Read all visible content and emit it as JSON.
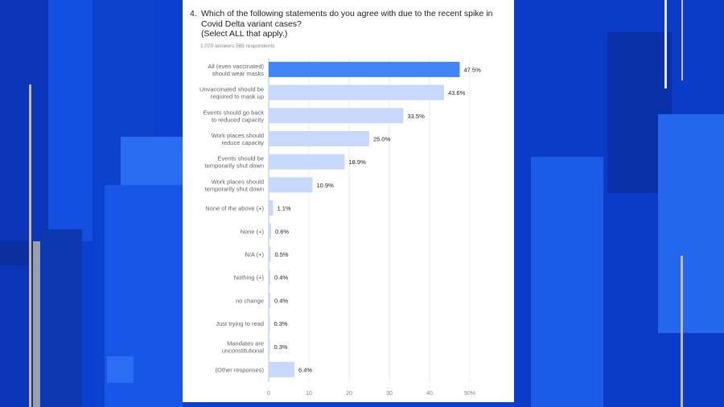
{
  "question": {
    "number": "4.",
    "text": "Which of the following statements do you agree with due to the recent spike in Covid Delta variant cases?",
    "instruction": "(Select ALL that apply.)"
  },
  "stats": "1,070 answers 565 respondents",
  "colors": {
    "highlight": "#4285f4",
    "bar": "#c6d9fb",
    "background": "#0a3fd0"
  },
  "chart_data": {
    "type": "bar",
    "orientation": "horizontal",
    "categories": [
      [
        "All (even vaccinated)",
        "should wear masks"
      ],
      [
        "Unvaccinated should be",
        "required to mask up"
      ],
      [
        "Events should go back",
        "to reduced capacity"
      ],
      [
        "Work places should",
        "reduce capacity"
      ],
      [
        "Events should be",
        "temporarily shut down"
      ],
      [
        "Work places should",
        "temporarily shut down"
      ],
      [
        "None of the above (+)"
      ],
      [
        "None (+)"
      ],
      [
        "N/A (+)"
      ],
      [
        "Nothing (+)"
      ],
      [
        "no change"
      ],
      [
        "Just trying to read"
      ],
      [
        "Mandates are",
        "unconstitutional"
      ],
      [
        "(Other responses)"
      ]
    ],
    "values": [
      47.5,
      43.6,
      33.5,
      25.0,
      18.9,
      10.9,
      1.1,
      0.6,
      0.5,
      0.4,
      0.4,
      0.3,
      0.3,
      6.4
    ],
    "value_labels": [
      "47.5%",
      "43.6%",
      "33.5%",
      "25.0%",
      "18.9%",
      "10.9%",
      "1.1%",
      "0.6%",
      "0.5%",
      "0.4%",
      "0.4%",
      "0.3%",
      "0.3%",
      "6.4%"
    ],
    "highlight_index": 0,
    "xlim": [
      0,
      50
    ],
    "xticks": [
      "0",
      "10",
      "20",
      "30",
      "40",
      "50%"
    ],
    "grid": true
  }
}
